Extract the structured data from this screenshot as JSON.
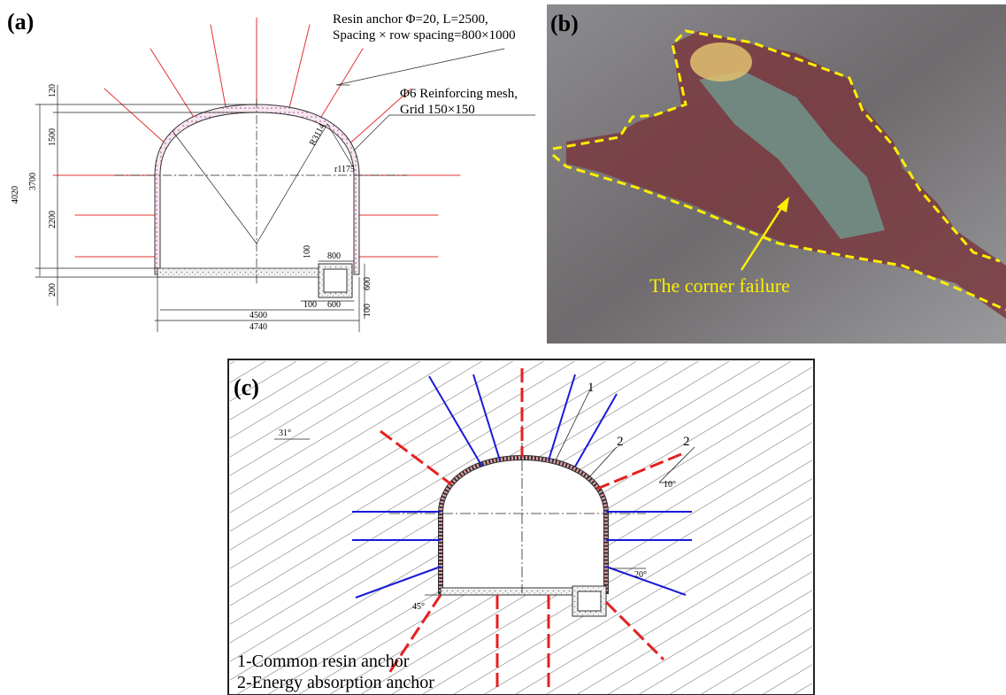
{
  "panel_a": {
    "label": "(a)",
    "anchor_note": [
      "Resin anchor Φ=20, L=2500,",
      "Spacing × row spacing=800×1000"
    ],
    "mesh_note": [
      "Φ6 Reinforcing mesh,",
      "Grid 150×150"
    ],
    "dimensions": [
      "120",
      "1500",
      "3700",
      "4020",
      "2200",
      "200",
      "R3114",
      "r1175",
      "100",
      "800",
      "600",
      "100",
      "600",
      "100",
      "4500",
      "4740"
    ]
  },
  "panel_b": {
    "label": "(b)",
    "annotation": "The corner failure"
  },
  "panel_c": {
    "label": "(c)",
    "callouts": [
      "1",
      "2",
      "2"
    ],
    "angles": [
      "31°",
      "10°",
      "20°",
      "45°"
    ],
    "legend": [
      "1-Common resin anchor",
      "2-Energy absorption anchor"
    ]
  }
}
